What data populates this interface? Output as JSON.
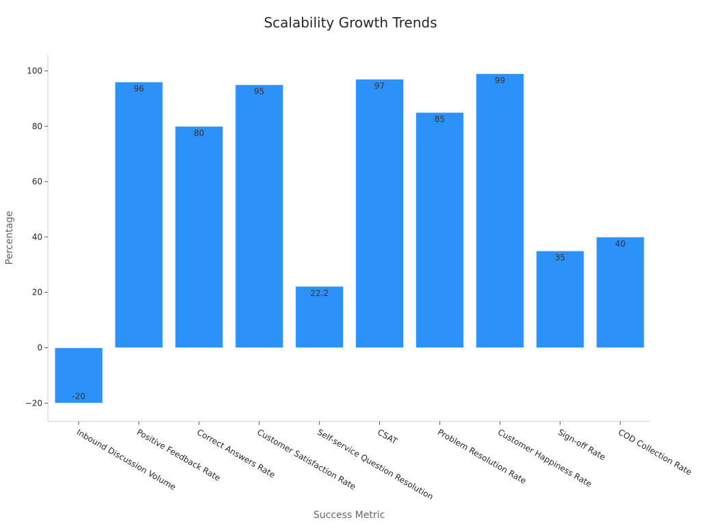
{
  "chart_data": {
    "type": "bar",
    "title": "Scalability Growth Trends",
    "xlabel": "Success Metric",
    "ylabel": "Percentage",
    "categories": [
      "Inbound Discussion Volume",
      "Positive Feedback Rate",
      "Correct Answers Rate",
      "Customer Satisfaction Rate",
      "Self-service Question Resolution",
      "CSAT",
      "Problem Resolution Rate",
      "Customer Happiness Rate",
      "Sign-off Rate",
      "COD Collection Rate"
    ],
    "values": [
      -20,
      96,
      80,
      95,
      22.2,
      97,
      85,
      99,
      35,
      40
    ],
    "value_labels": [
      "-20",
      "96",
      "80",
      "95",
      "22.2",
      "97",
      "85",
      "99",
      "35",
      "40"
    ],
    "yticks": [
      -20,
      0,
      20,
      40,
      60,
      80,
      100
    ],
    "ytick_labels": [
      "−20",
      "0",
      "20",
      "40",
      "60",
      "80",
      "100"
    ],
    "ylim": [
      -26.6,
      105.8
    ],
    "bar_color": "#2d91fa",
    "grid": false,
    "legend": "none"
  }
}
